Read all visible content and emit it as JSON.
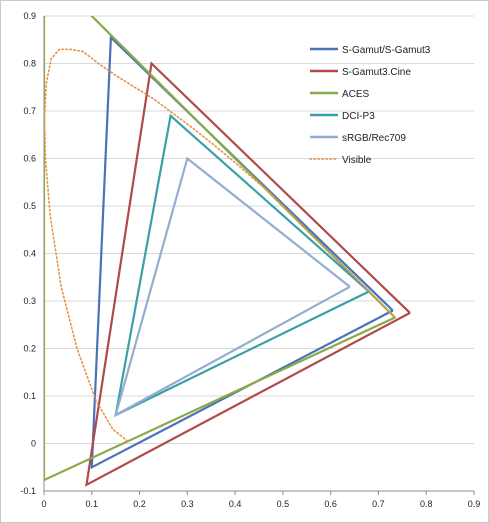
{
  "chart_data": {
    "type": "line",
    "title": "",
    "xlabel": "",
    "ylabel": "",
    "xlim": [
      0,
      0.9
    ],
    "ylim": [
      -0.1,
      0.9
    ],
    "x_ticks": [
      "0",
      "0.1",
      "0.2",
      "0.3",
      "0.4",
      "0.5",
      "0.6",
      "0.7",
      "0.8",
      "0.9"
    ],
    "y_ticks": [
      "-0.1",
      "0",
      "0.1",
      "0.2",
      "0.3",
      "0.4",
      "0.5",
      "0.6",
      "0.7",
      "0.8",
      "0.9"
    ],
    "grid": "horizontal",
    "legend_position": "top-right",
    "series": [
      {
        "name": "S-Gamut/S-Gamut3",
        "color": "#4a72b8",
        "dash": "solid",
        "x": [
          0.73,
          0.14,
          0.1,
          0.73
        ],
        "y": [
          0.28,
          0.855,
          -0.05,
          0.28
        ]
      },
      {
        "name": "S-Gamut3.Cine",
        "color": "#b04a4a",
        "dash": "solid",
        "x": [
          0.766,
          0.225,
          0.089,
          0.766
        ],
        "y": [
          0.275,
          0.8,
          -0.087,
          0.275
        ]
      },
      {
        "name": "ACES",
        "color": "#8aaa48",
        "dash": "solid",
        "x": [
          0.7347,
          0.0,
          0.0001,
          0.7347
        ],
        "y": [
          0.2653,
          1.0,
          -0.077,
          0.2653
        ]
      },
      {
        "name": "DCI-P3",
        "color": "#3aa0a8",
        "dash": "solid",
        "x": [
          0.68,
          0.265,
          0.15,
          0.68
        ],
        "y": [
          0.32,
          0.69,
          0.06,
          0.32
        ]
      },
      {
        "name": "sRGB/Rec709",
        "color": "#93aed0",
        "dash": "solid",
        "x": [
          0.64,
          0.3,
          0.15,
          0.64
        ],
        "y": [
          0.33,
          0.6,
          0.06,
          0.33
        ]
      },
      {
        "name": "Visible",
        "color": "#e7924a",
        "dash": "dotted",
        "x": [
          0.175,
          0.144,
          0.109,
          0.069,
          0.036,
          0.013,
          0.003,
          0.001,
          0.005,
          0.015,
          0.032,
          0.055,
          0.082,
          0.114,
          0.15,
          0.19,
          0.23,
          0.27,
          0.31,
          0.35,
          0.39,
          0.43,
          0.47,
          0.51,
          0.55,
          0.59,
          0.63,
          0.67,
          0.71,
          0.735
        ],
        "y": [
          0.005,
          0.03,
          0.09,
          0.2,
          0.33,
          0.48,
          0.6,
          0.69,
          0.76,
          0.81,
          0.83,
          0.83,
          0.825,
          0.8,
          0.775,
          0.75,
          0.725,
          0.695,
          0.665,
          0.633,
          0.6,
          0.565,
          0.53,
          0.49,
          0.45,
          0.41,
          0.37,
          0.33,
          0.29,
          0.265
        ]
      }
    ]
  }
}
